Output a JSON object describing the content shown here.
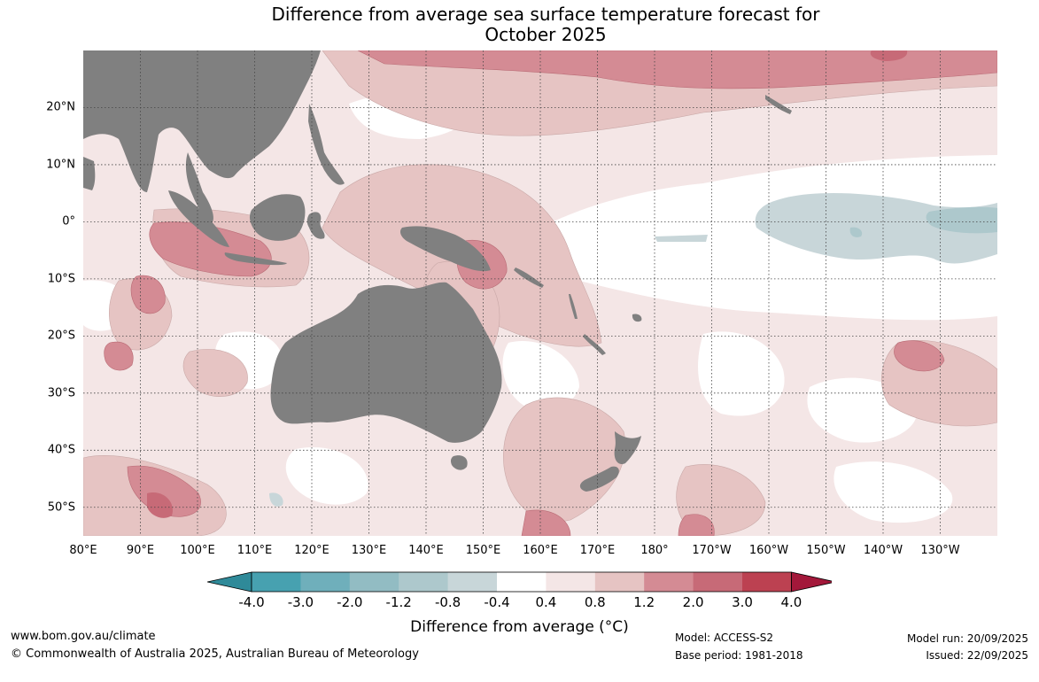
{
  "title": {
    "line1": "Difference from average sea surface temperature forecast for",
    "line2": "October 2025"
  },
  "map": {
    "lon_range": [
      80,
      240
    ],
    "lat_range": [
      -55,
      30
    ],
    "latitude_labels": [
      {
        "lat": 20,
        "text": "20°N"
      },
      {
        "lat": 10,
        "text": "10°N"
      },
      {
        "lat": 0,
        "text": "0°"
      },
      {
        "lat": -10,
        "text": "10°S"
      },
      {
        "lat": -20,
        "text": "20°S"
      },
      {
        "lat": -30,
        "text": "30°S"
      },
      {
        "lat": -40,
        "text": "40°S"
      },
      {
        "lat": -50,
        "text": "50°S"
      }
    ],
    "longitude_labels": [
      {
        "lon": 80,
        "text": "80°E"
      },
      {
        "lon": 90,
        "text": "90°E"
      },
      {
        "lon": 100,
        "text": "100°E"
      },
      {
        "lon": 110,
        "text": "110°E"
      },
      {
        "lon": 120,
        "text": "120°E"
      },
      {
        "lon": 130,
        "text": "130°E"
      },
      {
        "lon": 140,
        "text": "140°E"
      },
      {
        "lon": 150,
        "text": "150°E"
      },
      {
        "lon": 160,
        "text": "160°E"
      },
      {
        "lon": 170,
        "text": "170°E"
      },
      {
        "lon": 180,
        "text": "180°"
      },
      {
        "lon": 190,
        "text": "170°W"
      },
      {
        "lon": 200,
        "text": "160°W"
      },
      {
        "lon": 210,
        "text": "150°W"
      },
      {
        "lon": 220,
        "text": "140°W"
      },
      {
        "lon": 230,
        "text": "130°W"
      }
    ],
    "land_color": "#808080",
    "ocean_color": "#ffffff"
  },
  "colorbar": {
    "ticks": [
      "-4.0",
      "-3.0",
      "-2.0",
      "-1.2",
      "-0.8",
      "-0.4",
      "0.4",
      "0.8",
      "1.2",
      "2.0",
      "3.0",
      "4.0"
    ],
    "colors": [
      "#2f8a99",
      "#47a1b0",
      "#6fafbb",
      "#92bcc3",
      "#adc8cc",
      "#c8d6d9",
      "#ffffff",
      "#f4e6e6",
      "#e6c4c3",
      "#d48b94",
      "#c76a77",
      "#bc4151",
      "#a3183a"
    ],
    "title": "Difference from average (°C)"
  },
  "footer": {
    "website": "www.bom.gov.au/climate",
    "copyright": "© Commonwealth of Australia 2025, Australian Bureau of Meteorology",
    "model": "Model: ACCESS-S2",
    "base_period": "Base period: 1981-2018",
    "model_run": "Model run: 20/09/2025",
    "issued": "Issued: 22/09/2025"
  }
}
